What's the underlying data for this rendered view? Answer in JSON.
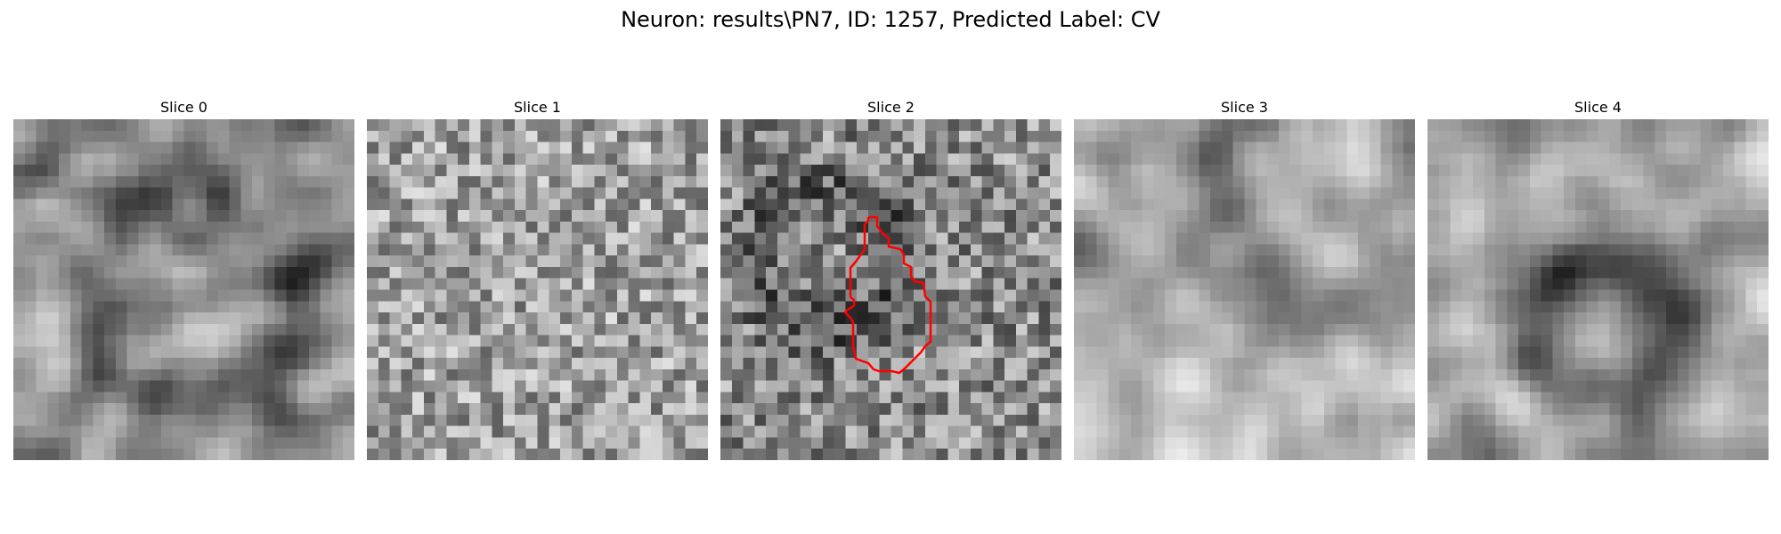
{
  "figure": {
    "title": "Neuron: results\\PN7, ID: 1257, Predicted Label: CV"
  },
  "panels": [
    {
      "title": "Slice 0"
    },
    {
      "title": "Slice 1"
    },
    {
      "title": "Slice 2"
    },
    {
      "title": "Slice 3"
    },
    {
      "title": "Slice 4"
    }
  ],
  "colors": {
    "background": "#ffffff",
    "contour": "#ff0000",
    "colormap": "gray"
  }
}
